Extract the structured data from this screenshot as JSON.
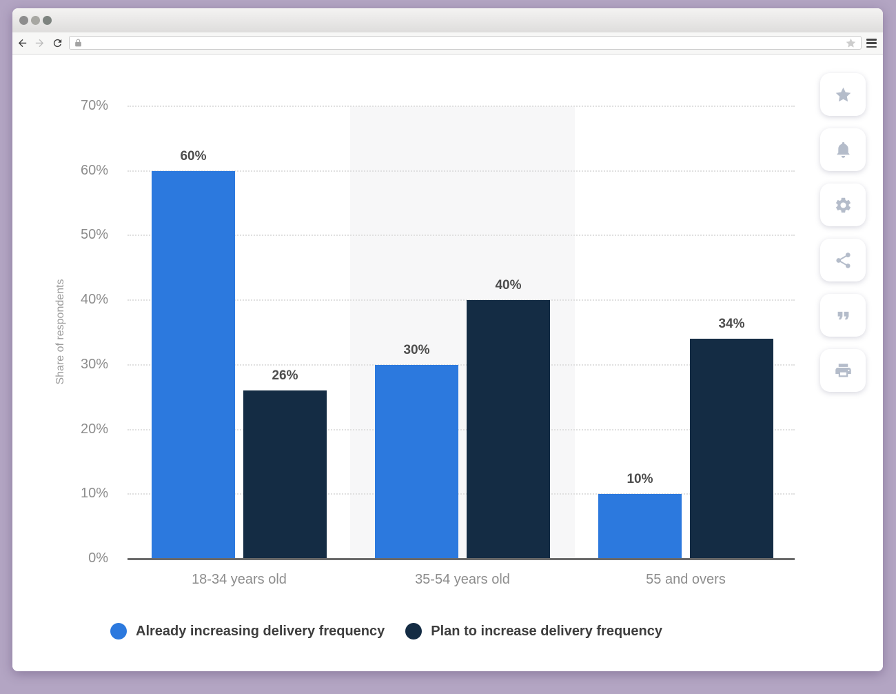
{
  "browser": {
    "address_value": "",
    "icons": {
      "back": "back-arrow-icon",
      "forward": "forward-arrow-icon",
      "refresh": "refresh-icon",
      "lock": "padlock-icon",
      "bookmark": "bookmark-star-icon",
      "menu": "hamburger-menu-icon"
    },
    "window_controls": [
      "dot",
      "dot",
      "dot"
    ]
  },
  "action_rail": [
    {
      "name": "favorite",
      "icon": "star-icon"
    },
    {
      "name": "notifications",
      "icon": "bell-icon"
    },
    {
      "name": "settings",
      "icon": "gear-icon"
    },
    {
      "name": "share",
      "icon": "share-icon"
    },
    {
      "name": "cite",
      "icon": "quote-icon"
    },
    {
      "name": "print",
      "icon": "printer-icon"
    }
  ],
  "colors": {
    "desktop_background": "#b3a5c3",
    "series_blue": "#2c79de",
    "series_navy": "#142c44",
    "highlight_band": "#f7f7f8",
    "rail_icon": "#b4bcca"
  },
  "chart_data": {
    "type": "bar",
    "categories": [
      "18-34 years old",
      "35-54 years old",
      "55 and overs"
    ],
    "series": [
      {
        "name": "Already increasing delivery frequency",
        "color": "#2c79de",
        "values": [
          60,
          30,
          10
        ]
      },
      {
        "name": "Plan to increase delivery frequency",
        "color": "#142c44",
        "values": [
          26,
          40,
          34
        ]
      }
    ],
    "title": "",
    "xlabel": "",
    "ylabel": "Share of respondents",
    "ylim": [
      0,
      70
    ],
    "ytick_step": 10,
    "tick_suffix": "%",
    "data_label_suffix": "%",
    "grid": "horizontal-dotted",
    "legend_position": "bottom",
    "highlighted_category_index": 1
  }
}
